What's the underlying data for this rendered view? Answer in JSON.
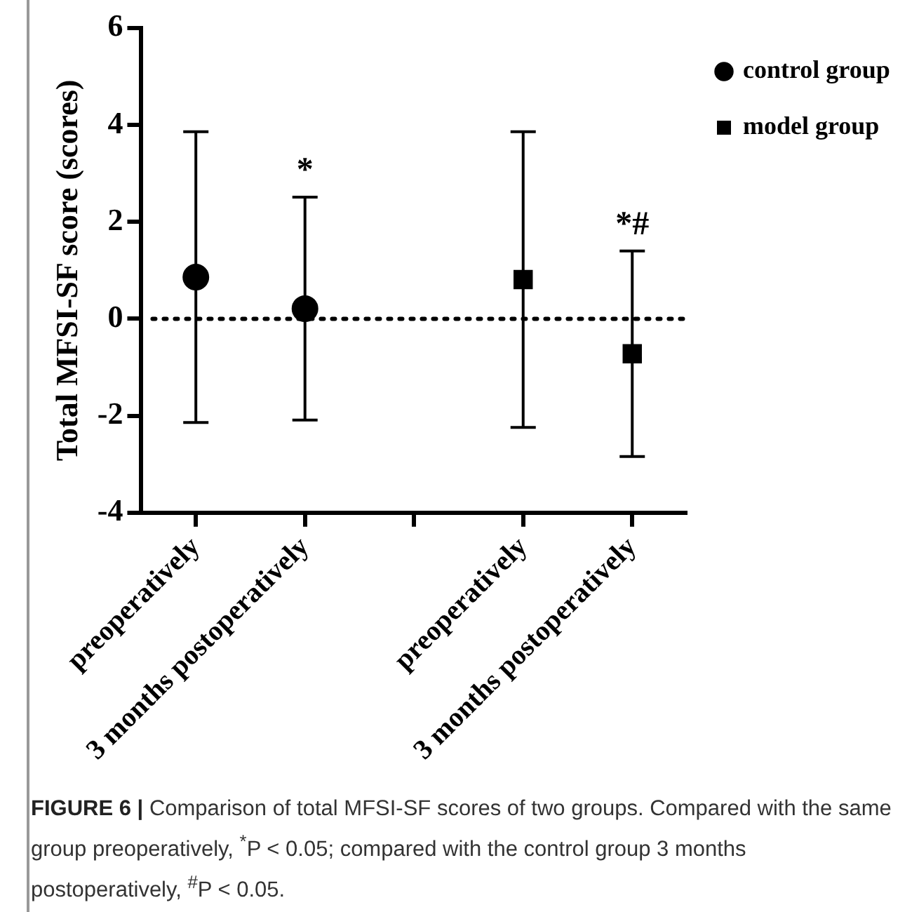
{
  "chart_data": {
    "type": "scatter",
    "ylabel": "Total MFSI-SF score (scores)",
    "categories": [
      "preoperatively",
      "3 months postoperatively",
      null,
      "preoperatively",
      "3 months postoperatively"
    ],
    "series": [
      {
        "name": "control group",
        "color": "#000000",
        "marker": "circle",
        "values": [
          0.86,
          0.21,
          null,
          null,
          null
        ],
        "value_labels": [
          null,
          "*",
          null,
          null,
          null
        ],
        "errors": [
          3.0,
          2.3,
          null,
          null,
          null
        ]
      },
      {
        "name": "model group",
        "color": "#000000",
        "marker": "square",
        "values": [
          null,
          null,
          null,
          0.81,
          -0.72
        ],
        "value_labels": [
          null,
          null,
          null,
          null,
          "*#"
        ],
        "errors": [
          null,
          null,
          null,
          3.05,
          2.12
        ]
      }
    ],
    "ylim": [
      -4,
      6
    ],
    "yticks": [
      -4,
      -2,
      0,
      2,
      4,
      6
    ],
    "grid": false,
    "legend": "top right",
    "ref_lines": [
      {
        "axis": "y",
        "value": 0,
        "line_style": "dotted",
        "color": "#000000"
      }
    ],
    "annotations": [
      "FIGURE 6 | Comparison of total MFSI-SF scores of two groups. Compared with the same group preoperatively, $^{*}$P < 0.05; compared with the control group 3 months postoperatively, $^{#}$P < 0.05."
    ]
  }
}
